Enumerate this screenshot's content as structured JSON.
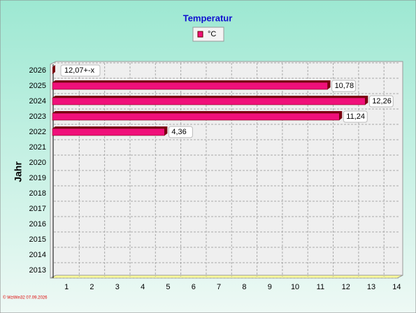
{
  "chart_data": {
    "type": "bar",
    "orientation": "horizontal",
    "title": "Temperatur",
    "y_label": "Jahr",
    "footer": "© WzWin32  07.09.2026",
    "categories": [
      "2026",
      "2025",
      "2024",
      "2023",
      "2022",
      "2021",
      "2020",
      "2019",
      "2018",
      "2017",
      "2016",
      "2015",
      "2014",
      "2013"
    ],
    "series": [
      {
        "name": "°C",
        "color": "#f0107a",
        "values": [
          null,
          10.78,
          12.26,
          11.24,
          4.36,
          null,
          null,
          null,
          null,
          null,
          null,
          null,
          null,
          null
        ],
        "value_labels": [
          null,
          "10,78",
          "12,26",
          "11,24",
          "4,36",
          null,
          null,
          null,
          null,
          null,
          null,
          null,
          null,
          null
        ]
      }
    ],
    "annotation": "12,07+-x",
    "xlim": [
      0,
      13.6
    ],
    "xticks": [
      1,
      2,
      3,
      4,
      5,
      6,
      7,
      8,
      9,
      10,
      11,
      12,
      13,
      14
    ],
    "grid": true
  }
}
